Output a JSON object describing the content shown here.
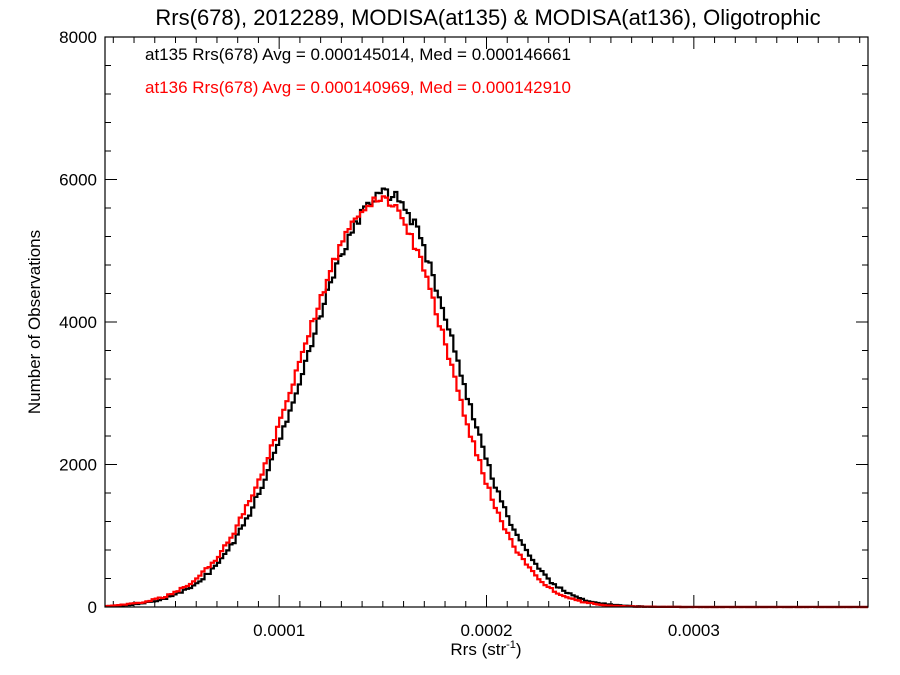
{
  "chart_data": {
    "type": "histogram",
    "title": "Rrs(678), 2012289, MODISA(at135) & MODISA(at136), Oligotrophic",
    "xlabel_main": "Rrs (str",
    "xlabel_sup": "-1",
    "xlabel_close": ")",
    "ylabel": "Number of Observations",
    "xlim": [
      1.6e-05,
      0.000384
    ],
    "ylim": [
      0,
      8000
    ],
    "x_ticks": [
      {
        "value": 0.0001,
        "label": "0.0001"
      },
      {
        "value": 0.0002,
        "label": "0.0002"
      },
      {
        "value": 0.0003,
        "label": "0.0003"
      }
    ],
    "y_ticks": [
      {
        "value": 0,
        "label": "0"
      },
      {
        "value": 2000,
        "label": "2000"
      },
      {
        "value": 4000,
        "label": "4000"
      },
      {
        "value": 6000,
        "label": "6000"
      },
      {
        "value": 8000,
        "label": "8000"
      }
    ],
    "bin_width": 1.5e-06,
    "series": [
      {
        "legend": "at135 Rrs(678) Avg = 0.000145014, Med = 0.000146661",
        "color": "#000000",
        "mean": 0.000152,
        "sigma_left": 3.85e-05,
        "sigma_right": 3.35e-05,
        "peak": 5800
      },
      {
        "legend": "at136 Rrs(678) Avg = 0.000140969, Med = 0.000142910",
        "color": "#ff0000",
        "mean": 0.000149,
        "sigma_left": 3.85e-05,
        "sigma_right": 3.3e-05,
        "peak": 5750
      }
    ]
  }
}
